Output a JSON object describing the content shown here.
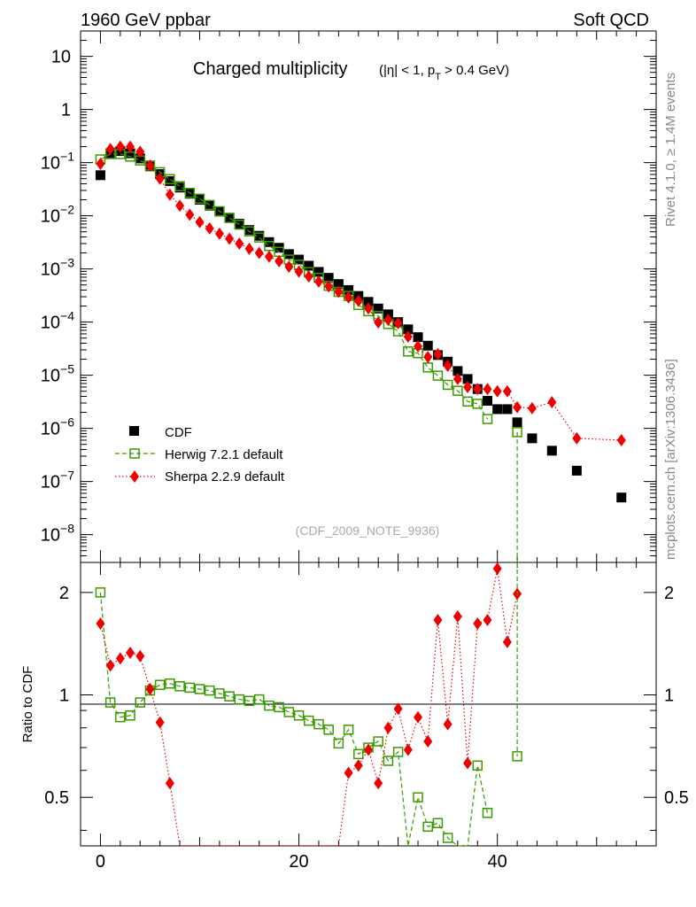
{
  "header": {
    "left": "1960 GeV ppbar",
    "right": "Soft QCD"
  },
  "side_text": {
    "rivet": "Rivet 4.1.0, ≥ 1.4M events",
    "mcplots": "mcplots.cern.ch [arXiv:1306.3436]"
  },
  "chart_data": {
    "type": "scatter",
    "title": "Charged multiplicity",
    "title_cut_parts": [
      "(|η| < 1, p",
      "T",
      " > 0.4 GeV)"
    ],
    "watermark": "(CDF_2009_NOTE_9936)",
    "top_panel": {
      "yscale": "log",
      "ylim": [
        3e-09,
        30
      ],
      "xlim": [
        -2,
        56
      ],
      "y_ticks": [
        {
          "v": 10,
          "base": "10",
          "exp": ""
        },
        {
          "v": 1,
          "base": "1",
          "exp": ""
        },
        {
          "v": 0.1,
          "base": "10",
          "exp": "−1"
        },
        {
          "v": 0.01,
          "base": "10",
          "exp": "−2"
        },
        {
          "v": 0.001,
          "base": "10",
          "exp": "−3"
        },
        {
          "v": 0.0001,
          "base": "10",
          "exp": "−4"
        },
        {
          "v": 1e-05,
          "base": "10",
          "exp": "−5"
        },
        {
          "v": 1e-06,
          "base": "10",
          "exp": "−6"
        },
        {
          "v": 1e-07,
          "base": "10",
          "exp": "−7"
        },
        {
          "v": 1e-08,
          "base": "10",
          "exp": "−8"
        }
      ]
    },
    "bottom_panel": {
      "ylabel": "Ratio to CDF",
      "yscale": "log",
      "ylim": [
        0.36,
        2.45
      ],
      "y_ticks": [
        {
          "v": 2,
          "label": "2"
        },
        {
          "v": 1,
          "label": "1"
        },
        {
          "v": 0.5,
          "label": "0.5"
        }
      ],
      "x_ticks": [
        {
          "v": 0,
          "label": "0"
        },
        {
          "v": 20,
          "label": "20"
        },
        {
          "v": 40,
          "label": "40"
        }
      ]
    },
    "legend": {
      "position": "bottom-left",
      "entries": [
        "CDF",
        "Herwig 7.2.1 default",
        "Sherpa 2.2.9 default"
      ]
    },
    "series": [
      {
        "name": "CDF",
        "color": "#000000",
        "marker": "filled-square",
        "x": [
          0,
          1,
          2,
          3,
          4,
          5,
          6,
          7,
          8,
          9,
          10,
          11,
          12,
          13,
          14,
          15,
          16,
          17,
          18,
          19,
          20,
          21,
          22,
          23,
          24,
          25,
          26,
          27,
          28,
          29,
          30,
          31,
          32,
          33,
          34,
          35,
          36,
          37,
          38,
          39,
          40,
          41,
          42,
          43.5,
          45.5,
          48,
          52.5
        ],
        "y": [
          0.058,
          0.15,
          0.165,
          0.15,
          0.12,
          0.085,
          0.061,
          0.045,
          0.034,
          0.026,
          0.02,
          0.0155,
          0.012,
          0.0092,
          0.0071,
          0.0054,
          0.0042,
          0.0032,
          0.0025,
          0.0019,
          0.0015,
          0.00115,
          0.00088,
          0.00068,
          0.00052,
          0.0004,
          0.00031,
          0.00024,
          0.00018,
          0.00014,
          0.0001,
          7.3e-05,
          5.2e-05,
          3.6e-05,
          2.4e-05,
          1.8e-05,
          1.2e-05,
          8.5e-06,
          5.5e-06,
          3.3e-06,
          2.3e-06,
          2.3e-06,
          1.3e-06,
          6.5e-07,
          3.8e-07,
          1.6e-07,
          5e-08
        ]
      },
      {
        "name": "Herwig 7.2.1 default",
        "color": "#3a9a00",
        "marker": "open-square",
        "x": [
          0,
          1,
          2,
          3,
          4,
          5,
          6,
          7,
          8,
          9,
          10,
          11,
          12,
          13,
          14,
          15,
          16,
          17,
          18,
          19,
          20,
          21,
          22,
          23,
          24,
          25,
          26,
          27,
          28,
          29,
          30,
          31,
          32,
          33,
          34,
          35,
          36,
          37,
          38,
          39,
          40,
          41,
          42
        ],
        "y": [
          0.115,
          0.145,
          0.145,
          0.13,
          0.11,
          0.088,
          0.066,
          0.049,
          0.036,
          0.027,
          0.021,
          0.016,
          0.0122,
          0.0091,
          0.0068,
          0.0051,
          0.0039,
          0.0027,
          0.0021,
          0.0015,
          0.0012,
          0.00087,
          0.00068,
          0.00048,
          0.00037,
          0.00031,
          0.00021,
          0.00016,
          0.00013,
          9.2e-05,
          6.7e-05,
          2.8e-05,
          2.6e-05,
          1.4e-05,
          9.8e-06,
          6.6e-06,
          5.1e-06,
          3.2e-06,
          2.9e-06,
          1.5e-06,
          null,
          null,
          8.5e-07
        ],
        "ratio_x": [
          0,
          1,
          2,
          3,
          4,
          5,
          6,
          7,
          8,
          9,
          10,
          11,
          12,
          13,
          14,
          15,
          16,
          17,
          18,
          19,
          20,
          21,
          22,
          23,
          24,
          25,
          26,
          27,
          28,
          29,
          30,
          31,
          32,
          33,
          34,
          35,
          36,
          37,
          38,
          39,
          40,
          41,
          42
        ],
        "ratio": [
          2.0,
          0.95,
          0.86,
          0.87,
          0.95,
          1.03,
          1.07,
          1.08,
          1.06,
          1.05,
          1.04,
          1.03,
          1.01,
          0.99,
          0.97,
          0.96,
          0.97,
          0.93,
          0.92,
          0.89,
          0.87,
          0.84,
          0.82,
          0.79,
          0.72,
          0.79,
          0.67,
          0.7,
          0.73,
          0.64,
          0.68,
          0.29,
          0.5,
          0.41,
          0.42,
          0.38,
          0.33,
          0.34,
          0.62,
          0.45,
          null,
          null,
          0.66
        ]
      },
      {
        "name": "Sherpa 2.2.9 default",
        "color": "#ee0000",
        "marker": "filled-diamond",
        "x": [
          0,
          1,
          2,
          3,
          4,
          5,
          6,
          7,
          8,
          9,
          10,
          11,
          12,
          13,
          14,
          15,
          16,
          17,
          18,
          19,
          20,
          21,
          22,
          23,
          24,
          25,
          26,
          27,
          28,
          29,
          30,
          31,
          32,
          33,
          34,
          35,
          36,
          37,
          38,
          39,
          40,
          41,
          42,
          43.5,
          45.5,
          48,
          52.5
        ],
        "y": [
          0.095,
          0.18,
          0.2,
          0.2,
          0.16,
          0.088,
          0.05,
          0.025,
          0.0155,
          0.0105,
          0.0076,
          0.0058,
          0.0046,
          0.0037,
          0.003,
          0.0024,
          0.002,
          0.0017,
          0.0014,
          0.0011,
          0.00089,
          0.00072,
          0.00058,
          0.00047,
          0.00037,
          0.00029,
          0.00025,
          0.00018,
          9.8e-05,
          0.00011,
          9.5e-05,
          5.3e-05,
          3.5e-05,
          2.2e-05,
          2.5e-05,
          1.5e-05,
          8.5e-06,
          6e-06,
          5.5e-06,
          5.5e-06,
          5e-06,
          5e-06,
          2.5e-06,
          2.4e-06,
          3.1e-06,
          6.5e-07,
          6e-07
        ],
        "ratio_x": [
          0,
          1,
          2,
          3,
          4,
          5,
          6,
          7,
          8,
          21,
          24,
          25,
          26,
          27,
          28,
          29,
          30,
          31,
          32,
          33,
          34,
          35,
          36,
          37,
          38,
          39,
          40,
          41,
          42
        ],
        "ratio": [
          1.62,
          1.22,
          1.28,
          1.33,
          1.3,
          1.04,
          0.83,
          0.55,
          0.33,
          0.35,
          0.34,
          0.59,
          0.62,
          0.69,
          0.55,
          0.8,
          0.91,
          0.69,
          0.86,
          0.73,
          1.66,
          0.82,
          1.7,
          0.63,
          1.62,
          1.66,
          2.35,
          1.43,
          1.98
        ]
      }
    ]
  }
}
